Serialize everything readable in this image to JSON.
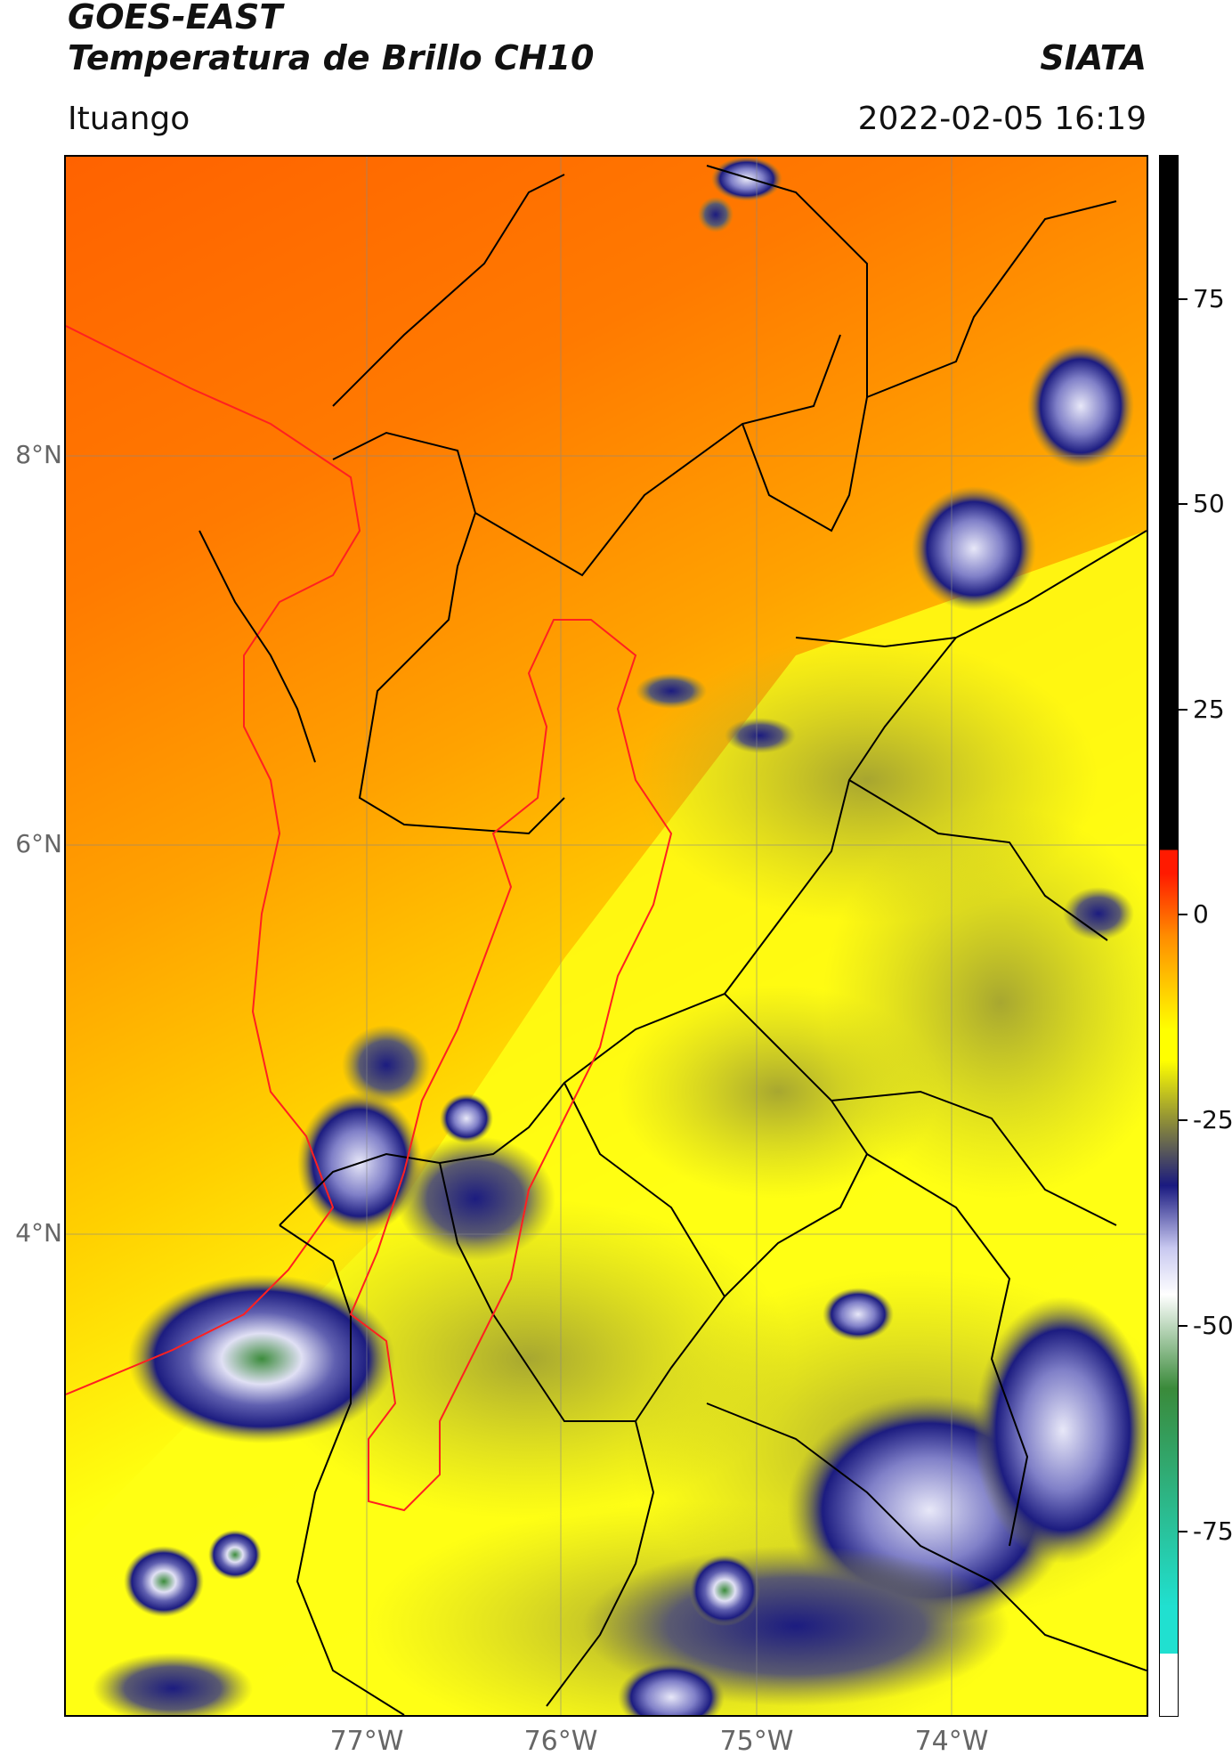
{
  "header": {
    "title_line1": "GOES-EAST",
    "title_line2": "Temperatura de Brillo CH10",
    "organization": "SIATA",
    "region": "Ituango",
    "timestamp": "2022-02-05 16:19"
  },
  "axes": {
    "lat_labels": [
      "8°N",
      "6°N",
      "4°N"
    ],
    "lon_labels": [
      "77°W",
      "76°W",
      "75°W",
      "74°W"
    ]
  },
  "colorbar": {
    "tick_labels": [
      "75",
      "50",
      "25",
      "0",
      "-25",
      "-50",
      "-75"
    ],
    "colors": {
      "black": "#000000",
      "red": "#ff1a00",
      "orange": "#ff8c00",
      "yellow": "#ffff00",
      "olive": "#8a8a3a",
      "navy": "#1a1a80",
      "lavender": "#c8c8f0",
      "white": "#ffffff",
      "green": "#3a8a3a",
      "cyan": "#20e0d0"
    }
  },
  "map_colors": {
    "land_warm": "#ff6a00",
    "land_mid": "#ffb000",
    "land_cool": "#ffff10",
    "cloud_low": "#8a8a3a",
    "cloud_mid": "#20208a",
    "cloud_high": "#d8d8f0",
    "cloud_top": "#3c8c3c",
    "borders": "#000000",
    "coast": "#ff2020",
    "basin": "#ff2020"
  }
}
